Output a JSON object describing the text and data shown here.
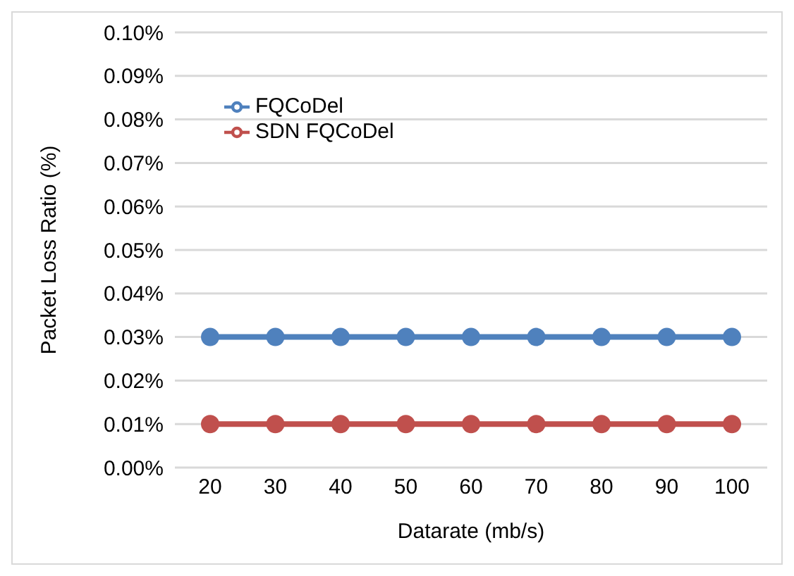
{
  "chart_data": {
    "type": "line",
    "xlabel": "Datarate (mb/s)",
    "ylabel": "Packet Loss Ratio (%)",
    "categories": [
      "20",
      "30",
      "40",
      "50",
      "60",
      "70",
      "80",
      "90",
      "100"
    ],
    "series": [
      {
        "name": "FQCoDel",
        "color": "#4f81bd",
        "values": [
          0.03,
          0.03,
          0.03,
          0.03,
          0.03,
          0.03,
          0.03,
          0.03,
          0.03
        ]
      },
      {
        "name": "SDN FQCoDel",
        "color": "#c0504d",
        "values": [
          0.01,
          0.01,
          0.01,
          0.01,
          0.01,
          0.01,
          0.01,
          0.01,
          0.01
        ]
      }
    ],
    "ylim": [
      0,
      0.1
    ],
    "yticks": [
      {
        "value": 0,
        "label": "0.00%"
      },
      {
        "value": 0.01,
        "label": "0.01%"
      },
      {
        "value": 0.02,
        "label": "0.02%"
      },
      {
        "value": 0.03,
        "label": "0.03%"
      },
      {
        "value": 0.04,
        "label": "0.04%"
      },
      {
        "value": 0.05,
        "label": "0.05%"
      },
      {
        "value": 0.06,
        "label": "0.06%"
      },
      {
        "value": 0.07,
        "label": "0.07%"
      },
      {
        "value": 0.08,
        "label": "0.08%"
      },
      {
        "value": 0.09,
        "label": "0.09%"
      },
      {
        "value": 0.1,
        "label": "0.10%"
      }
    ],
    "grid": "y",
    "legend": "top left",
    "marker": "circle",
    "line_style": "solid"
  }
}
